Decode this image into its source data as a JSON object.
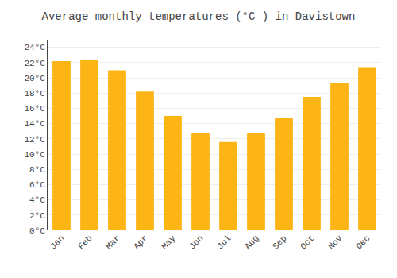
{
  "chart_data": {
    "type": "bar",
    "title": "Average monthly temperatures (°C ) in Davistown",
    "categories": [
      "Jan",
      "Feb",
      "Mar",
      "Apr",
      "May",
      "Jun",
      "Jul",
      "Aug",
      "Sep",
      "Oct",
      "Nov",
      "Dec"
    ],
    "values": [
      22.2,
      22.3,
      21.0,
      18.2,
      15.0,
      12.7,
      11.6,
      12.7,
      14.8,
      17.5,
      19.3,
      21.4
    ],
    "color": "#FDB515",
    "ylim": [
      0,
      25
    ],
    "yticks": [
      {
        "value": 0,
        "label": "0°C"
      },
      {
        "value": 2,
        "label": "2°C"
      },
      {
        "value": 4,
        "label": "4°C"
      },
      {
        "value": 6,
        "label": "6°C"
      },
      {
        "value": 8,
        "label": "8°C"
      },
      {
        "value": 10,
        "label": "10°C"
      },
      {
        "value": 12,
        "label": "12°C"
      },
      {
        "value": 14,
        "label": "14°C"
      },
      {
        "value": 16,
        "label": "16°C"
      },
      {
        "value": 18,
        "label": "18°C"
      },
      {
        "value": 20,
        "label": "20°C"
      },
      {
        "value": 22,
        "label": "22°C"
      },
      {
        "value": 24,
        "label": "24°C"
      }
    ],
    "grid": true
  }
}
